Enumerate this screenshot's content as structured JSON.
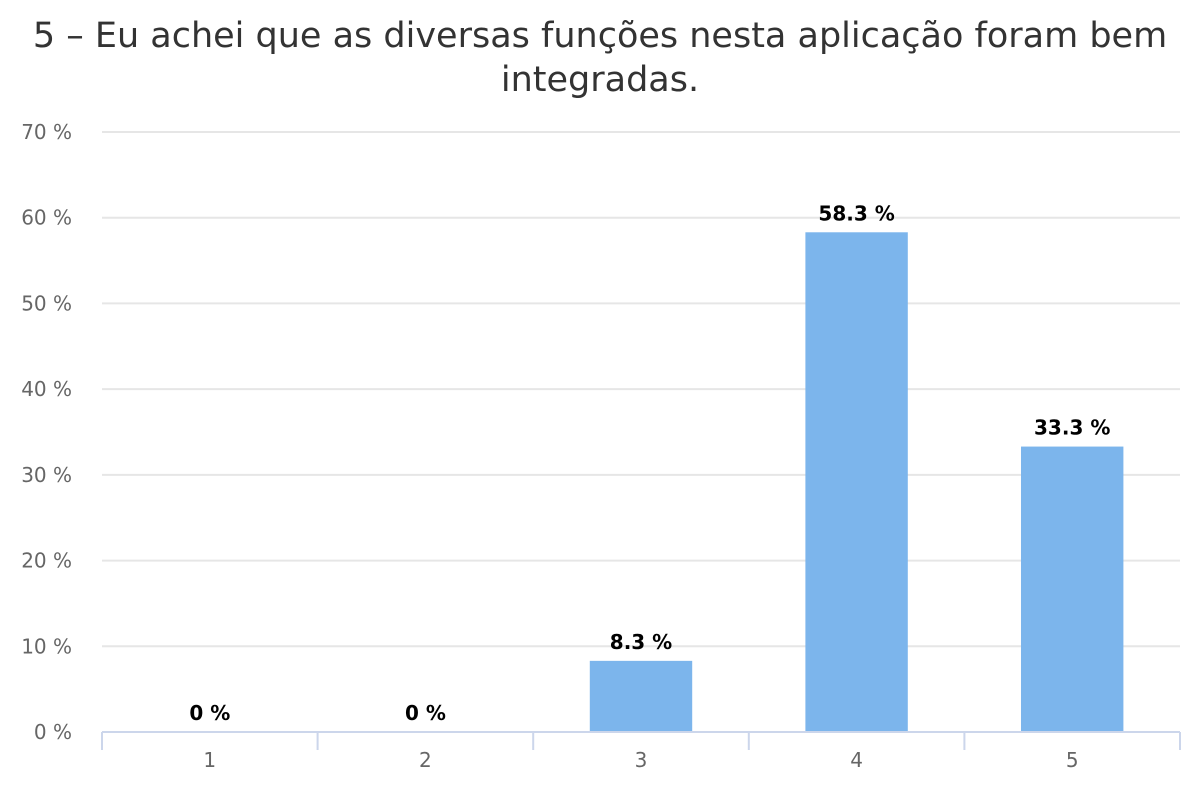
{
  "chart_data": {
    "type": "bar",
    "title_line1": "5 – Eu achei que as diversas funções nesta aplicação foram bem",
    "title_line2": "integradas.",
    "categories": [
      "1",
      "2",
      "3",
      "4",
      "5"
    ],
    "values": [
      0,
      0,
      8.3,
      58.3,
      33.3
    ],
    "data_labels": [
      "0 %",
      "0 %",
      "8.3 %",
      "58.3 %",
      "33.3 %"
    ],
    "y_ticks": [
      "0 %",
      "10 %",
      "20 %",
      "30 %",
      "40 %",
      "50 %",
      "60 %",
      "70 %"
    ],
    "ylim": [
      0,
      70
    ],
    "xlabel": "",
    "ylabel": "",
    "grid": true,
    "legend": "none",
    "bar_color": "#7cb5ec",
    "grid_color": "#e6e6e6",
    "axis_color": "#ccd6eb"
  }
}
